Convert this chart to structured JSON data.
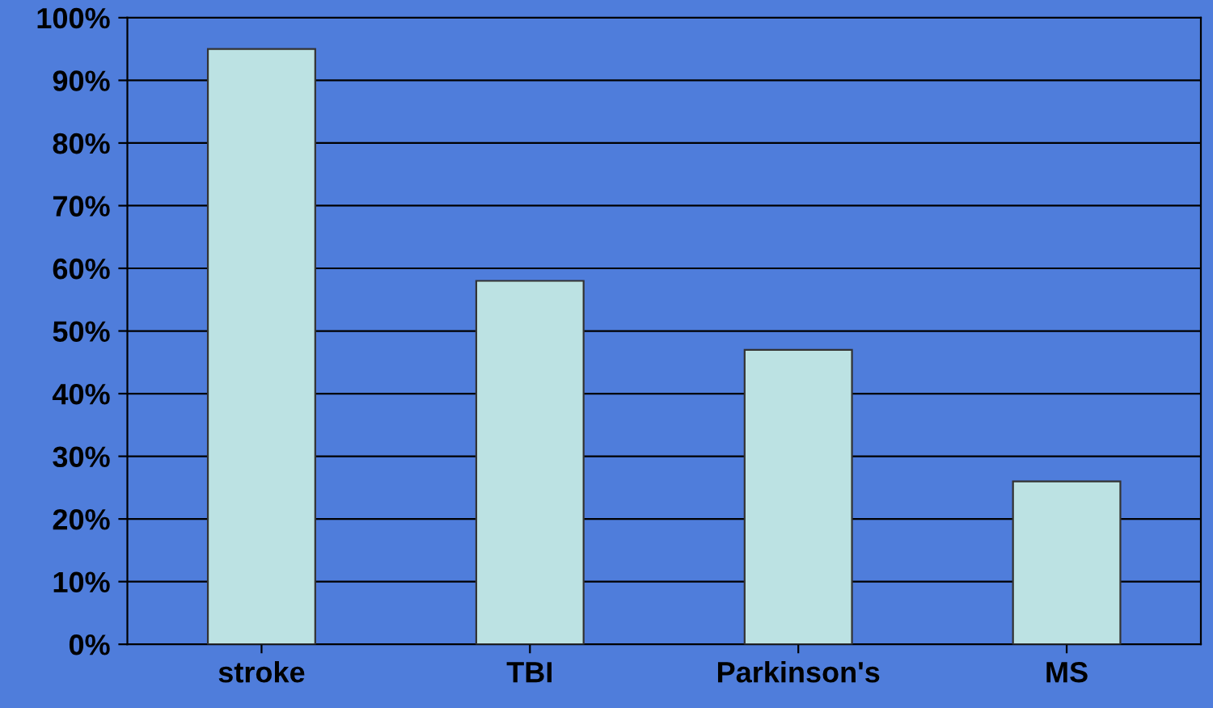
{
  "chart_data": {
    "type": "bar",
    "categories": [
      "stroke",
      "TBI",
      "Parkinson's",
      "MS"
    ],
    "values": [
      95,
      58,
      47,
      26
    ],
    "color": "#bce2e3",
    "ylim": [
      0,
      100
    ],
    "yticks": [
      {
        "value": 0,
        "label": "0%"
      },
      {
        "value": 10,
        "label": "10%"
      },
      {
        "value": 20,
        "label": "20%"
      },
      {
        "value": 30,
        "label": "30%"
      },
      {
        "value": 40,
        "label": "40%"
      },
      {
        "value": 50,
        "label": "50%"
      },
      {
        "value": 60,
        "label": "60%"
      },
      {
        "value": 70,
        "label": "70%"
      },
      {
        "value": 80,
        "label": "80%"
      },
      {
        "value": 90,
        "label": "90%"
      },
      {
        "value": 100,
        "label": "100%"
      }
    ],
    "grid": "y"
  }
}
